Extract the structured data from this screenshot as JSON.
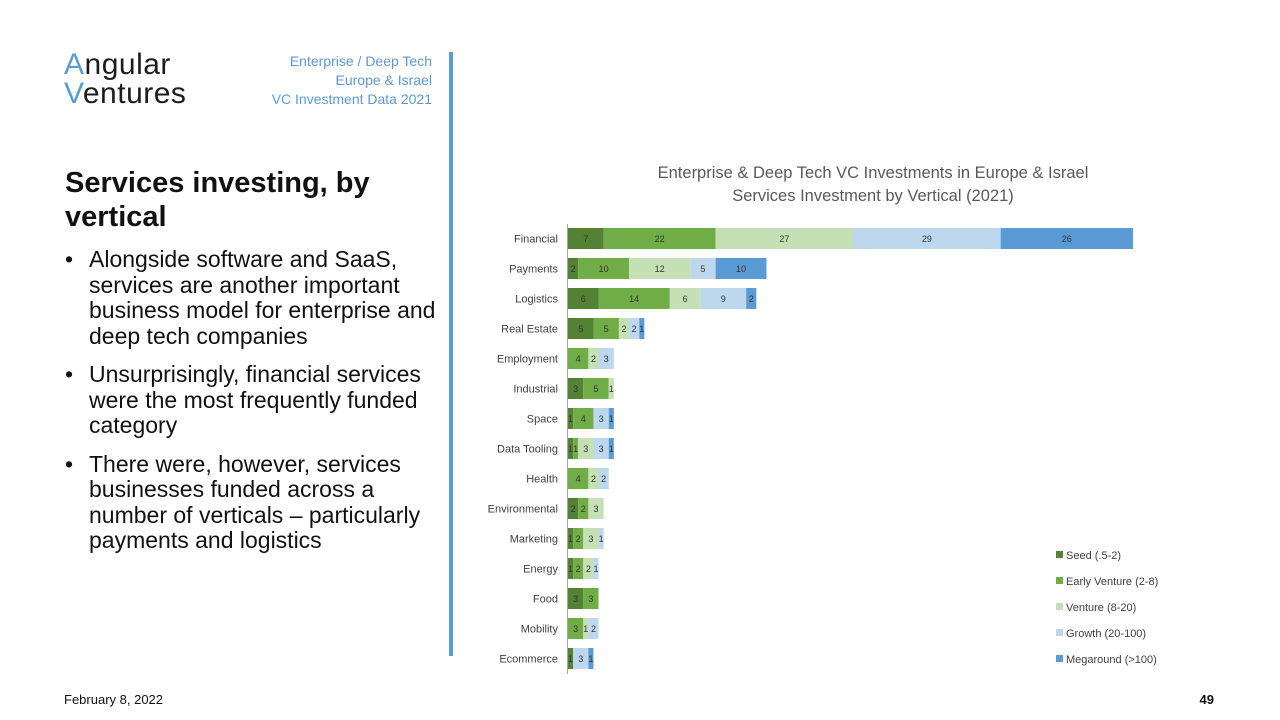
{
  "logo": {
    "line1_accent": "A",
    "line1_rest": "ngular",
    "line2_accent": "V",
    "line2_rest": "entures"
  },
  "header": {
    "line1": "Enterprise / Deep Tech",
    "line2": "Europe & Israel",
    "line3": "VC Investment Data 2021"
  },
  "slide": {
    "title": "Services investing, by vertical",
    "bullets": [
      "Alongside software and SaaS, services are another important business model for enterprise and deep tech companies",
      "Unsurprisingly, financial services were the most frequently funded category",
      "There were, however, services businesses funded across a number of verticals – particularly payments and logistics"
    ]
  },
  "footer": {
    "date": "February 8, 2022",
    "page": "49"
  },
  "colors": {
    "accent": "#5b9bd5",
    "seed": "#548235",
    "early": "#70ad47",
    "venture": "#c5e0b4",
    "growth": "#bdd7ee",
    "mega": "#5b9bd5"
  },
  "chart_data": {
    "type": "bar",
    "orientation": "horizontal",
    "stacked": true,
    "title": "Enterprise & Deep Tech VC Investments in Europe & Israel",
    "subtitle": "Services Investment by Vertical (2021)",
    "categories": [
      "Financial",
      "Payments",
      "Logistics",
      "Real Estate",
      "Employment",
      "Industrial",
      "Space",
      "Data Tooling",
      "Health",
      "Environmental",
      "Marketing",
      "Energy",
      "Food",
      "Mobility",
      "Ecommerce"
    ],
    "series": [
      {
        "name": "Seed (.5-2)",
        "color": "#548235",
        "values": [
          7,
          2,
          6,
          5,
          0,
          3,
          1,
          1,
          0,
          2,
          1,
          1,
          3,
          0,
          1
        ]
      },
      {
        "name": "Early Venture (2-8)",
        "color": "#70ad47",
        "values": [
          22,
          10,
          14,
          5,
          4,
          5,
          4,
          1,
          4,
          2,
          2,
          2,
          3,
          3,
          0
        ]
      },
      {
        "name": "Venture (8-20)",
        "color": "#c5e0b4",
        "values": [
          27,
          12,
          6,
          2,
          2,
          1,
          0,
          3,
          2,
          3,
          3,
          2,
          0,
          1,
          0
        ]
      },
      {
        "name": "Growth (20-100)",
        "color": "#bdd7ee",
        "values": [
          29,
          5,
          9,
          2,
          3,
          0,
          3,
          3,
          2,
          0,
          1,
          1,
          0,
          2,
          3
        ]
      },
      {
        "name": "Megaround (>100)",
        "color": "#5b9bd5",
        "values": [
          26,
          10,
          2,
          1,
          0,
          0,
          1,
          1,
          0,
          0,
          0,
          0,
          0,
          0,
          1
        ]
      }
    ],
    "legend_position": "bottom-right",
    "grid": false
  }
}
